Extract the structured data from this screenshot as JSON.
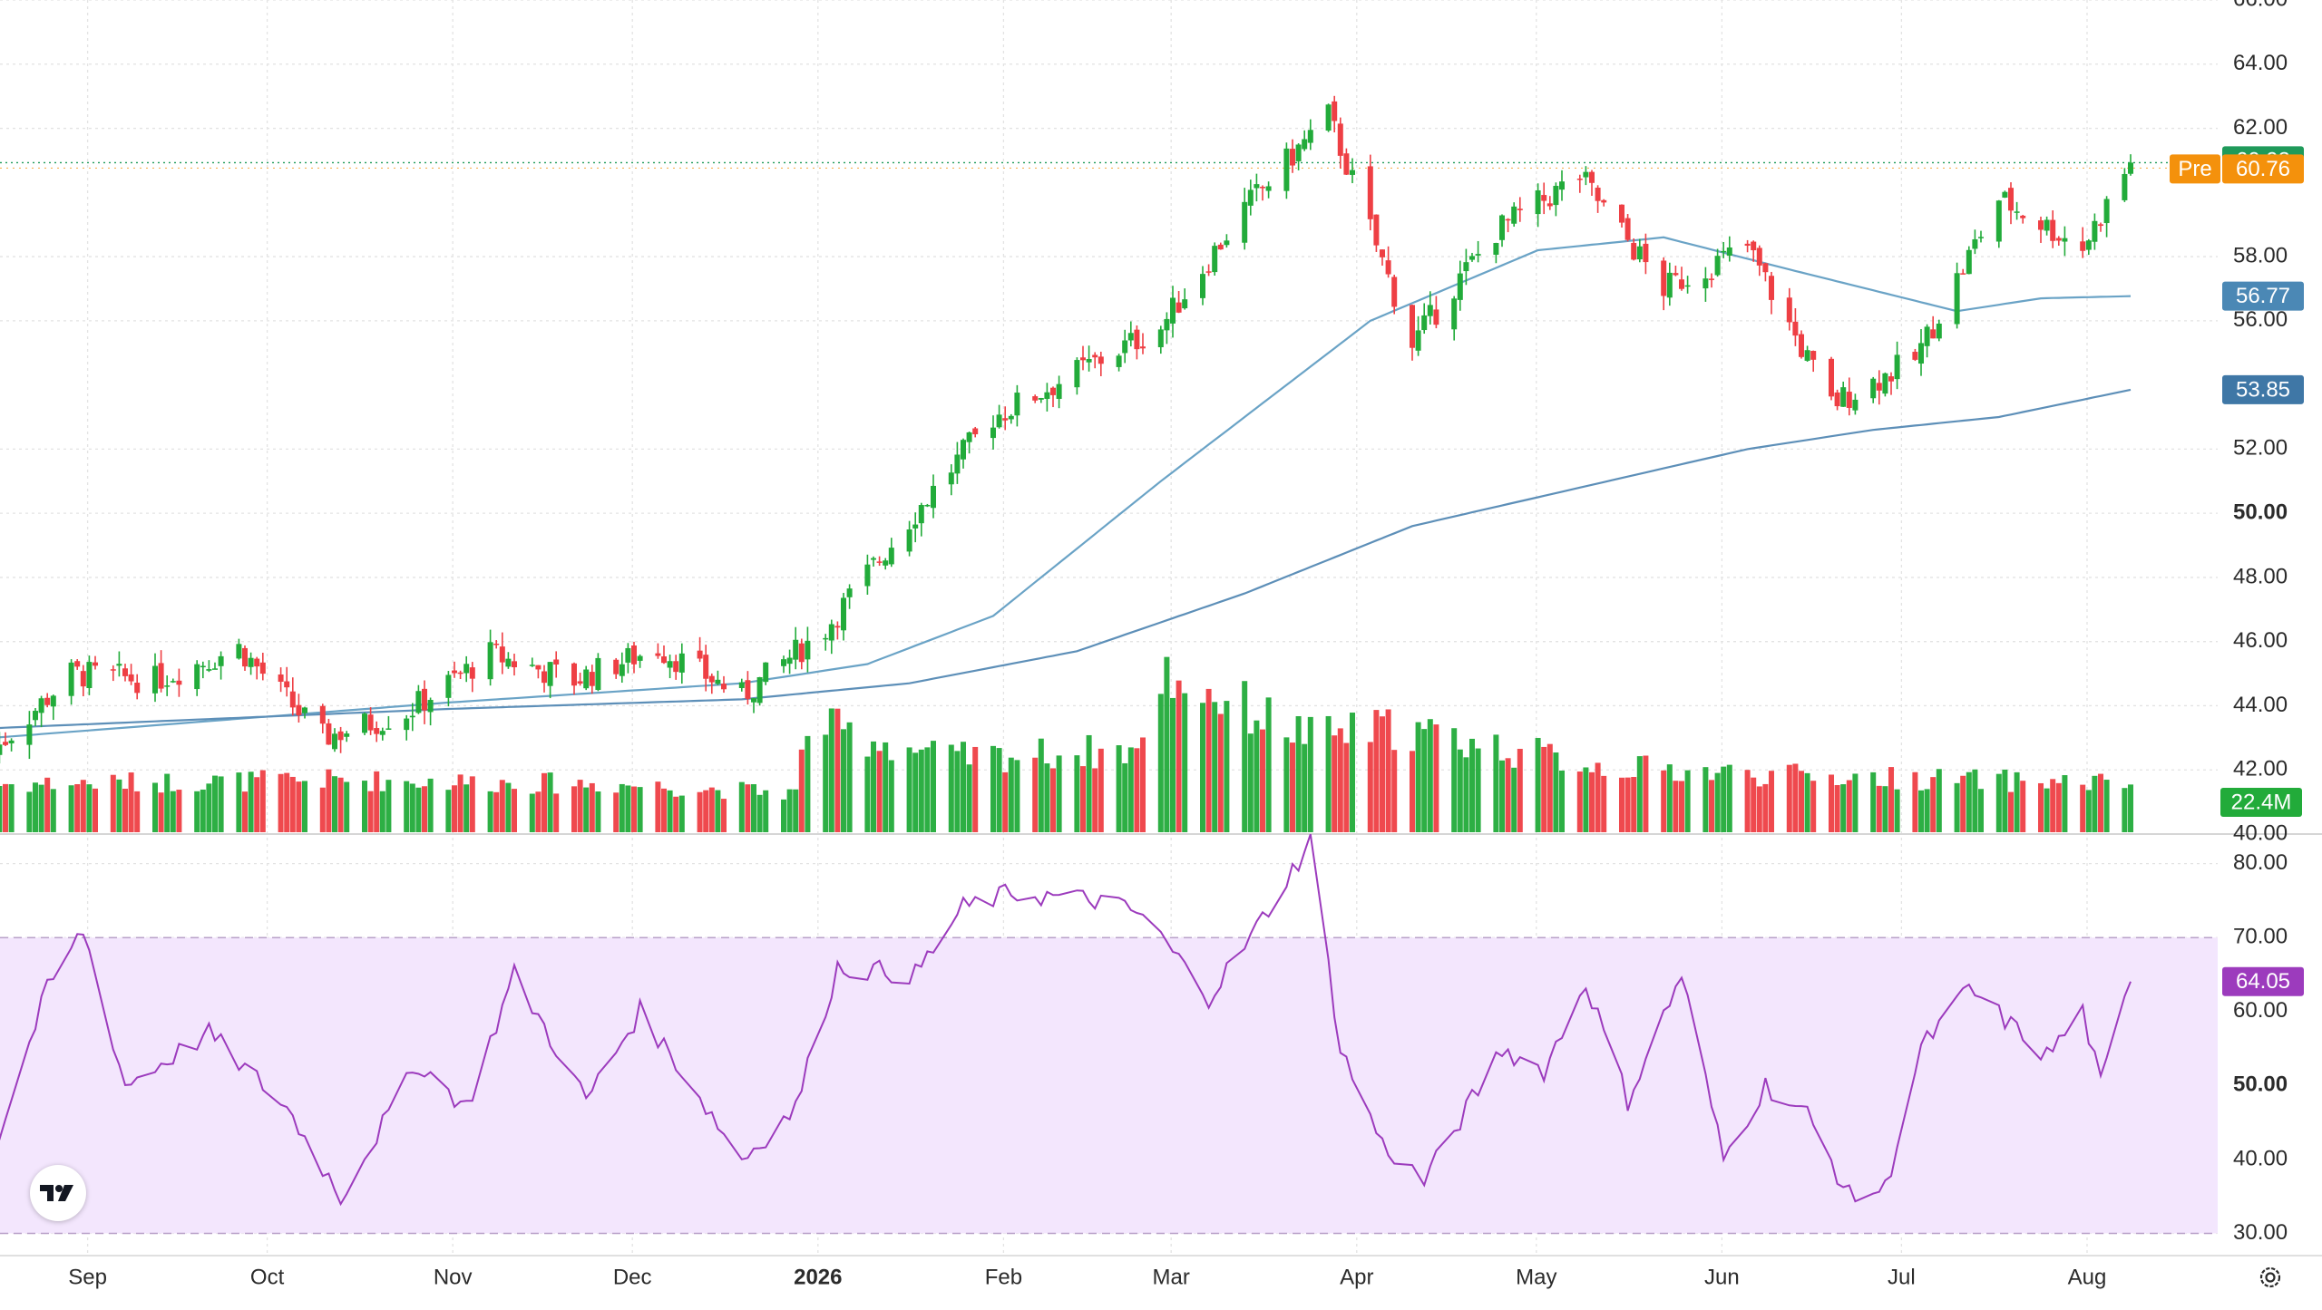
{
  "colors": {
    "up": "#22ab3a",
    "down": "#ee3f44",
    "ma_fast": "#6aa3c6",
    "ma_slow": "#5d8fb8",
    "rsi_line": "#9c3bbd",
    "rsi_band": "#f3e6fd",
    "rsi_guide": "#b8a0c8",
    "grid": "#e3e3e3",
    "axis_text": "#2b2b2b",
    "last_price": "#1f9a5a",
    "premarket": "#f4910c",
    "ma_fast_label": "#4b88b5",
    "ma_slow_label": "#3f77a6",
    "volume_label": "#22ab3a",
    "rsi_label": "#9c3bbd"
  },
  "icons": {
    "logo": "tradingview-logo-icon",
    "settings": "gear-icon"
  },
  "chart_data": {
    "type": "candlestick",
    "price_axis": {
      "ticks": [
        "66.00",
        "64.00",
        "62.00",
        "58.00",
        "56.00",
        "52.00",
        "50.00",
        "48.00",
        "46.00",
        "44.00",
        "42.00",
        "40.00"
      ],
      "bold_ticks": [
        "50.00"
      ],
      "range": [
        40,
        66
      ]
    },
    "time_axis": {
      "labels": [
        "Sep",
        "Oct",
        "Nov",
        "Dec",
        "2026",
        "Feb",
        "Mar",
        "Apr",
        "May",
        "Jun",
        "Jul",
        "Aug"
      ],
      "bold_labels": [
        "2026"
      ]
    },
    "price_labels": {
      "last": "60.93",
      "premarket_tag": "Pre",
      "premarket": "60.76",
      "ma_fast": "56.77",
      "ma_slow": "53.85",
      "volume": "22.4M"
    },
    "ohlc_anchors": {
      "dates": [
        "2025-08-19",
        "2025-09-01",
        "2025-09-15",
        "2025-09-29",
        "2025-10-13",
        "2025-10-27",
        "2025-11-10",
        "2025-11-24",
        "2025-12-08",
        "2025-12-22",
        "2026-01-05",
        "2026-01-19",
        "2026-02-02",
        "2026-02-16",
        "2026-03-02",
        "2026-03-16",
        "2026-03-30",
        "2026-04-13",
        "2026-04-27",
        "2026-05-11",
        "2026-05-25",
        "2026-06-08",
        "2026-06-22",
        "2026-07-06",
        "2026-07-20",
        "2026-08-03",
        "2026-08-11"
      ],
      "close": [
        42.6,
        45.0,
        44.8,
        45.8,
        43.0,
        43.8,
        45.6,
        44.8,
        45.8,
        44.3,
        46.4,
        49.8,
        53.0,
        54.4,
        55.8,
        59.5,
        62.4,
        55.3,
        58.8,
        60.5,
        57.0,
        58.3,
        53.4,
        54.8,
        59.8,
        58.3,
        60.93
      ]
    },
    "ma_fast": {
      "dates": [
        "2025-08-19",
        "2025-11-03",
        "2025-12-22",
        "2026-01-12",
        "2026-02-02",
        "2026-03-02",
        "2026-04-06",
        "2026-05-04",
        "2026-05-25",
        "2026-06-15",
        "2026-07-13",
        "2026-07-27",
        "2026-08-11"
      ],
      "values": [
        43.0,
        44.1,
        44.7,
        45.3,
        46.8,
        51.0,
        56.0,
        58.2,
        58.6,
        57.6,
        56.3,
        56.7,
        56.77
      ]
    },
    "ma_slow": {
      "dates": [
        "2025-08-19",
        "2025-11-03",
        "2025-12-22",
        "2026-01-19",
        "2026-02-16",
        "2026-03-16",
        "2026-04-13",
        "2026-05-11",
        "2026-06-08",
        "2026-06-29",
        "2026-07-20",
        "2026-08-11"
      ],
      "values": [
        43.3,
        43.9,
        44.2,
        44.7,
        45.7,
        47.5,
        49.6,
        50.8,
        52.0,
        52.6,
        53.0,
        53.85
      ]
    },
    "volume_millions": {
      "dates": [
        "2025-08-19",
        "2025-10-15",
        "2025-12-01",
        "2025-12-31",
        "2026-01-02",
        "2026-01-26",
        "2026-02-27",
        "2026-03-02",
        "2026-03-27",
        "2026-04-10",
        "2026-05-15",
        "2026-06-15",
        "2026-07-15",
        "2026-08-11"
      ],
      "values": [
        22,
        24,
        22,
        18,
        50,
        34,
        38,
        74,
        44,
        48,
        30,
        26,
        24,
        22.4
      ]
    },
    "volume_axis_max_millions": 120,
    "rsi": {
      "period": 14,
      "upper": 70,
      "lower": 30,
      "axis_ticks": [
        "80.00",
        "70.00",
        "60.00",
        "50.00",
        "40.00",
        "30.00"
      ],
      "range": [
        27,
        84
      ],
      "last": "64.05",
      "dates": [
        "2025-08-19",
        "2025-08-28",
        "2025-09-03",
        "2025-09-10",
        "2025-09-24",
        "2025-10-07",
        "2025-10-16",
        "2025-10-29",
        "2025-11-06",
        "2025-11-14",
        "2025-11-26",
        "2025-12-05",
        "2025-12-12",
        "2025-12-22",
        "2025-12-31",
        "2026-01-07",
        "2026-01-20",
        "2026-01-28",
        "2026-02-05",
        "2026-02-20",
        "2026-02-27",
        "2026-03-10",
        "2026-03-17",
        "2026-03-27",
        "2026-04-01",
        "2026-04-08",
        "2026-04-15",
        "2026-04-28",
        "2026-05-05",
        "2026-05-12",
        "2026-05-19",
        "2026-05-28",
        "2026-06-04",
        "2026-06-11",
        "2026-06-18",
        "2026-06-25",
        "2026-07-01",
        "2026-07-07",
        "2026-07-15",
        "2026-07-28",
        "2026-08-03",
        "2026-08-06",
        "2026-08-11"
      ],
      "values": [
        41,
        63,
        71,
        50,
        57,
        47,
        35,
        53,
        47,
        65,
        48,
        60,
        52,
        40,
        47,
        66,
        65,
        74,
        76,
        75,
        73,
        62,
        70,
        83,
        55,
        42,
        37,
        55,
        52,
        64,
        48,
        65,
        40,
        50,
        46,
        35,
        36,
        55,
        63,
        54,
        60,
        50,
        64.05
      ]
    }
  }
}
